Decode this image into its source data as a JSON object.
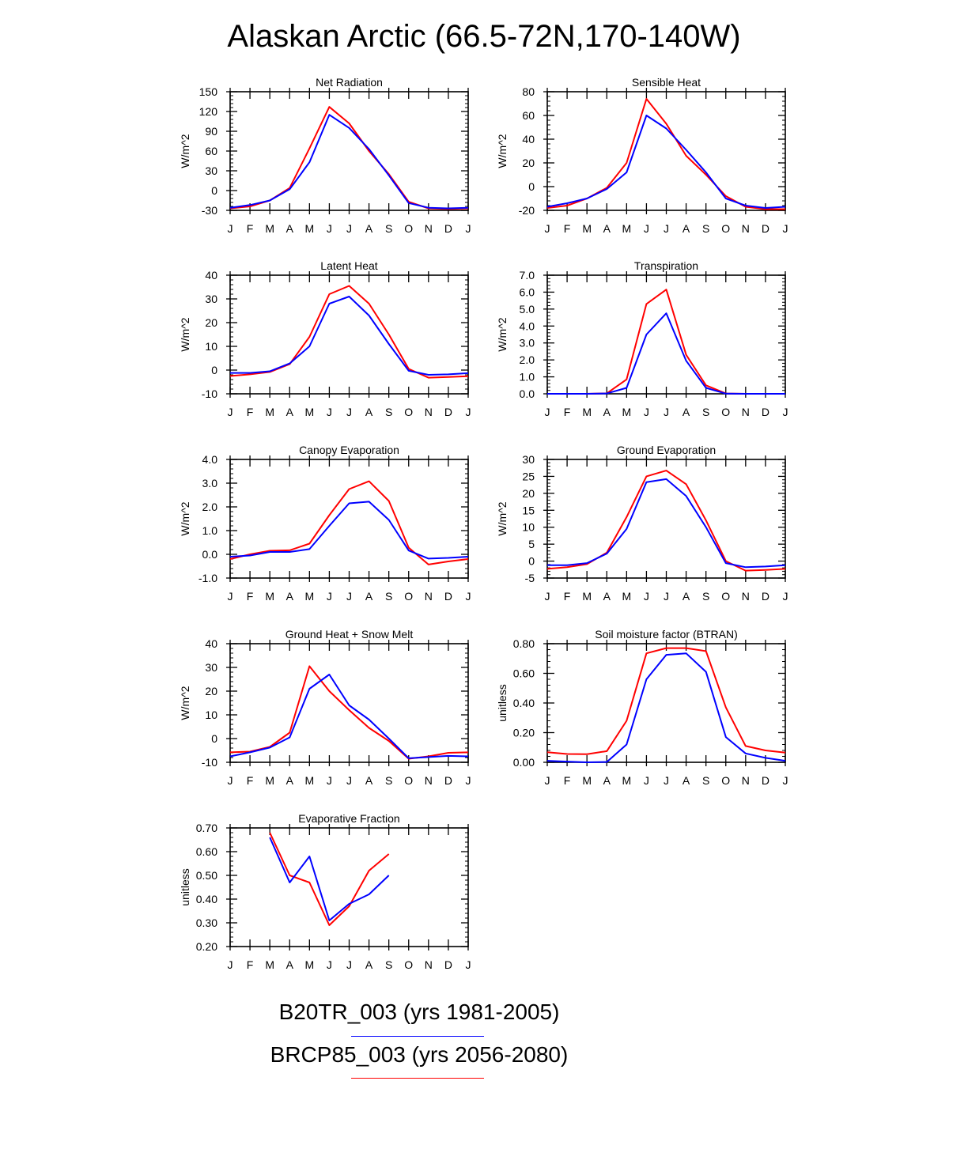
{
  "title": "Alaskan Arctic (66.5-72N,170-140W)",
  "legend": [
    {
      "label": "B20TR_003 (yrs 1981-2005)",
      "color": "#0000ff"
    },
    {
      "label": "BRCP85_003 (yrs 2056-2080)",
      "color": "#ff0000"
    }
  ],
  "months": [
    "J",
    "F",
    "M",
    "A",
    "M",
    "J",
    "J",
    "A",
    "S",
    "O",
    "N",
    "D",
    "J"
  ],
  "chart_data": [
    {
      "type": "line",
      "title": "Net Radiation",
      "ylabel": "W/m^2",
      "ylim": [
        -30,
        150
      ],
      "yticks": [
        -30,
        0,
        30,
        60,
        90,
        120,
        150
      ],
      "ytick_labels": [
        "-30",
        "0",
        "30",
        "60",
        "90",
        "120",
        "150"
      ],
      "series": [
        {
          "name": "BRCP85_003 (yrs 2056-2080)",
          "color": "#ff0000",
          "values": [
            -27,
            -24,
            -15,
            4,
            64,
            127,
            102,
            60,
            25,
            -17,
            -27,
            -28,
            -27
          ]
        },
        {
          "name": "B20TR_003 (yrs 1981-2005)",
          "color": "#0000ff",
          "values": [
            -26,
            -22,
            -15,
            2,
            43,
            115,
            95,
            63,
            23,
            -19,
            -26,
            -27,
            -26
          ]
        }
      ]
    },
    {
      "type": "line",
      "title": "Sensible Heat",
      "ylabel": "W/m^2",
      "ylim": [
        -20,
        80
      ],
      "yticks": [
        -20,
        0,
        20,
        40,
        60,
        80
      ],
      "ytick_labels": [
        "-20",
        "0",
        "20",
        "40",
        "60",
        "80"
      ],
      "series": [
        {
          "name": "BRCP85_003 (yrs 2056-2080)",
          "color": "#ff0000",
          "values": [
            -18,
            -16,
            -10,
            -1,
            20,
            74,
            53,
            26,
            10,
            -8,
            -17,
            -19,
            -19
          ]
        },
        {
          "name": "B20TR_003 (yrs 1981-2005)",
          "color": "#0000ff",
          "values": [
            -17,
            -14,
            -10,
            -2,
            12,
            60,
            49,
            31,
            12,
            -10,
            -16,
            -18,
            -17
          ]
        }
      ]
    },
    {
      "type": "line",
      "title": "Latent Heat",
      "ylabel": "W/m^2",
      "ylim": [
        -10,
        40
      ],
      "yticks": [
        -10,
        0,
        10,
        20,
        30,
        40
      ],
      "ytick_labels": [
        "-10",
        "0",
        "10",
        "20",
        "30",
        "40"
      ],
      "series": [
        {
          "name": "BRCP85_003 (yrs 2056-2080)",
          "color": "#ff0000",
          "values": [
            -2.5,
            -1.8,
            -0.8,
            2.5,
            14,
            32,
            35.5,
            28,
            15,
            0.5,
            -3.2,
            -2.9,
            -2.6
          ]
        },
        {
          "name": "B20TR_003 (yrs 1981-2005)",
          "color": "#0000ff",
          "values": [
            -1.2,
            -1.2,
            -0.5,
            2.8,
            10,
            28,
            31,
            23,
            11,
            -0.3,
            -2,
            -1.8,
            -1.3
          ]
        }
      ]
    },
    {
      "type": "line",
      "title": "Transpiration",
      "ylabel": "W/m^2",
      "ylim": [
        0,
        7
      ],
      "yticks": [
        0,
        1,
        2,
        3,
        4,
        5,
        6,
        7
      ],
      "ytick_labels": [
        "0.0",
        "1.0",
        "2.0",
        "3.0",
        "4.0",
        "5.0",
        "6.0",
        "7.0"
      ],
      "series": [
        {
          "name": "BRCP85_003 (yrs 2056-2080)",
          "color": "#ff0000",
          "values": [
            0,
            0,
            0,
            0.03,
            0.85,
            5.3,
            6.15,
            2.3,
            0.5,
            0.02,
            0,
            0,
            0
          ]
        },
        {
          "name": "B20TR_003 (yrs 1981-2005)",
          "color": "#0000ff",
          "values": [
            0,
            0,
            0,
            0.02,
            0.35,
            3.5,
            4.75,
            1.95,
            0.35,
            0.01,
            0,
            0,
            0
          ]
        }
      ]
    },
    {
      "type": "line",
      "title": "Canopy Evaporation",
      "ylabel": "W/m^2",
      "ylim": [
        -1,
        4
      ],
      "yticks": [
        -1,
        0,
        1,
        2,
        3,
        4
      ],
      "ytick_labels": [
        "-1.0",
        "0.0",
        "1.0",
        "2.0",
        "3.0",
        "4.0"
      ],
      "series": [
        {
          "name": "BRCP85_003 (yrs 2056-2080)",
          "color": "#ff0000",
          "values": [
            -0.2,
            0,
            0.15,
            0.17,
            0.45,
            1.65,
            2.75,
            3.08,
            2.25,
            0.28,
            -0.43,
            -0.3,
            -0.2
          ]
        },
        {
          "name": "B20TR_003 (yrs 1981-2005)",
          "color": "#0000ff",
          "values": [
            -0.1,
            -0.05,
            0.1,
            0.1,
            0.22,
            1.2,
            2.15,
            2.22,
            1.45,
            0.16,
            -0.18,
            -0.15,
            -0.1
          ]
        }
      ]
    },
    {
      "type": "line",
      "title": "Ground Evaporation",
      "ylabel": "W/m^2",
      "ylim": [
        -5,
        30
      ],
      "yticks": [
        -5,
        0,
        5,
        10,
        15,
        20,
        25,
        30
      ],
      "ytick_labels": [
        "-5",
        "0",
        "5",
        "10",
        "15",
        "20",
        "25",
        "30"
      ],
      "series": [
        {
          "name": "BRCP85_003 (yrs 2056-2080)",
          "color": "#ff0000",
          "values": [
            -2.3,
            -1.8,
            -0.9,
            2.5,
            13,
            25,
            26.7,
            22.7,
            12,
            0,
            -2.8,
            -2.6,
            -2.3
          ]
        },
        {
          "name": "B20TR_003 (yrs 1981-2005)",
          "color": "#0000ff",
          "values": [
            -1.2,
            -1.2,
            -0.6,
            2.2,
            9.5,
            23.3,
            24.2,
            19.2,
            10,
            -0.6,
            -1.8,
            -1.6,
            -1.2
          ]
        }
      ]
    },
    {
      "type": "line",
      "title": "Ground Heat + Snow Melt",
      "ylabel": "W/m^2",
      "ylim": [
        -10,
        40
      ],
      "yticks": [
        -10,
        0,
        10,
        20,
        30,
        40
      ],
      "ytick_labels": [
        "-10",
        "0",
        "10",
        "20",
        "30",
        "40"
      ],
      "series": [
        {
          "name": "BRCP85_003 (yrs 2056-2080)",
          "color": "#ff0000",
          "values": [
            -5.8,
            -5.5,
            -3.5,
            2.5,
            30.5,
            20,
            12,
            4.5,
            -1,
            -8.5,
            -7.5,
            -6,
            -5.8
          ]
        },
        {
          "name": "B20TR_003 (yrs 1981-2005)",
          "color": "#0000ff",
          "values": [
            -7.5,
            -5.8,
            -3.8,
            0.5,
            21,
            27,
            14,
            8,
            0,
            -8.3,
            -7.8,
            -7.3,
            -7.5
          ]
        }
      ]
    },
    {
      "type": "line",
      "title": "Soil moisture factor (BTRAN)",
      "ylabel": "unitless",
      "ylim": [
        0,
        0.8
      ],
      "yticks": [
        0,
        0.2,
        0.4,
        0.6,
        0.8
      ],
      "ytick_labels": [
        "0.00",
        "0.20",
        "0.40",
        "0.60",
        "0.80"
      ],
      "series": [
        {
          "name": "BRCP85_003 (yrs 2056-2080)",
          "color": "#ff0000",
          "values": [
            0.068,
            0.056,
            0.055,
            0.075,
            0.28,
            0.735,
            0.77,
            0.77,
            0.75,
            0.37,
            0.11,
            0.08,
            0.065
          ]
        },
        {
          "name": "B20TR_003 (yrs 1981-2005)",
          "color": "#0000ff",
          "values": [
            0.01,
            0.005,
            0,
            0.002,
            0.12,
            0.56,
            0.725,
            0.735,
            0.61,
            0.17,
            0.06,
            0.03,
            0.01
          ]
        }
      ]
    },
    {
      "type": "line",
      "title": "Evaporative Fraction",
      "ylabel": "unitless",
      "ylim": [
        0.2,
        0.7
      ],
      "yticks": [
        0.2,
        0.3,
        0.4,
        0.5,
        0.6,
        0.7
      ],
      "ytick_labels": [
        "0.20",
        "0.30",
        "0.40",
        "0.50",
        "0.60",
        "0.70"
      ],
      "series": [
        {
          "name": "BRCP85_003 (yrs 2056-2080)",
          "color": "#ff0000",
          "values": [
            null,
            null,
            0.68,
            0.5,
            0.47,
            0.29,
            0.37,
            0.52,
            0.59,
            null,
            null,
            null,
            null
          ]
        },
        {
          "name": "B20TR_003 (yrs 1981-2005)",
          "color": "#0000ff",
          "values": [
            null,
            null,
            0.66,
            0.47,
            0.58,
            0.31,
            0.38,
            0.42,
            0.5,
            null,
            null,
            null,
            null
          ]
        }
      ]
    }
  ]
}
